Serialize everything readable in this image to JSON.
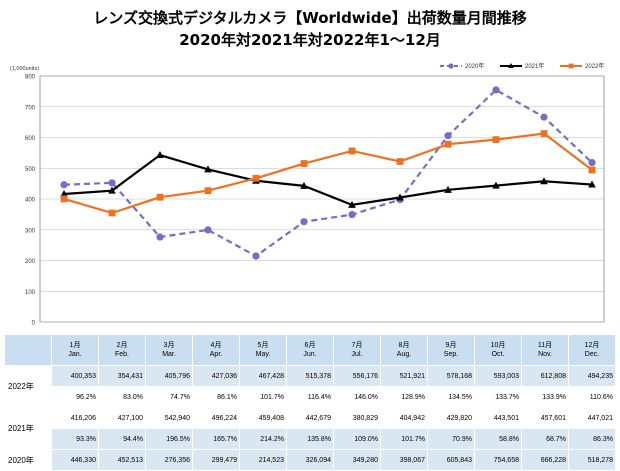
{
  "title_line1": "レンズ交換式デジタルカメラ【Worldwide】出荷数量月間推移",
  "title_line2": "2020年対2021年対2022年1〜12月",
  "chart_data": {
    "type": "line",
    "unit_label": "(1,000units)",
    "ylim": [
      0,
      800
    ],
    "yticks": [
      0,
      100,
      200,
      300,
      400,
      500,
      600,
      700,
      800
    ],
    "categories": [
      "1月",
      "2月",
      "3月",
      "4月",
      "5月",
      "6月",
      "7月",
      "8月",
      "9月",
      "10月",
      "11月",
      "12月"
    ],
    "legend_position": "top-right",
    "grid": "horizontal",
    "series": [
      {
        "name": "2020年",
        "color": "#7070cc",
        "style": "dashed",
        "marker": "circle",
        "values": [
          446.33,
          452.513,
          276.356,
          299.479,
          214.523,
          326.094,
          349.28,
          398.067,
          605.843,
          754.658,
          666.228,
          518.278
        ]
      },
      {
        "name": "2021年",
        "color": "#000000",
        "style": "solid",
        "marker": "triangle",
        "values": [
          416.206,
          427.1,
          542.94,
          496.224,
          459.408,
          442.679,
          380.829,
          404.942,
          429.82,
          443.501,
          457.601,
          447.021
        ]
      },
      {
        "name": "2022年",
        "color": "#f07020",
        "style": "solid",
        "marker": "square",
        "values": [
          400.353,
          354.431,
          405.796,
          427.036,
          467.428,
          515.378,
          556.176,
          521.921,
          578.168,
          593.003,
          612.808,
          494.235
        ]
      }
    ]
  },
  "table": {
    "months": [
      {
        "jp": "1月",
        "en": "Jan."
      },
      {
        "jp": "2月",
        "en": "Feb."
      },
      {
        "jp": "3月",
        "en": "Mar."
      },
      {
        "jp": "4月",
        "en": "Apr."
      },
      {
        "jp": "5月",
        "en": "May."
      },
      {
        "jp": "6月",
        "en": "Jun."
      },
      {
        "jp": "7月",
        "en": "Jul."
      },
      {
        "jp": "8月",
        "en": "Aug."
      },
      {
        "jp": "9月",
        "en": "Sep."
      },
      {
        "jp": "10月",
        "en": "Oct."
      },
      {
        "jp": "11月",
        "en": "Nov."
      },
      {
        "jp": "12月",
        "en": "Dec."
      }
    ],
    "rows": [
      {
        "label": "2022年",
        "values": [
          "400,353",
          "354,431",
          "405,796",
          "427,036",
          "467,428",
          "515,378",
          "556,176",
          "521,921",
          "578,168",
          "593,003",
          "612,808",
          "494,235"
        ],
        "ratios": [
          "96.2%",
          "83.0%",
          "74.7%",
          "86.1%",
          "101.7%",
          "116.4%",
          "146.0%",
          "128.9%",
          "134.5%",
          "133.7%",
          "133.9%",
          "110.6%"
        ]
      },
      {
        "label": "2021年",
        "values": [
          "416,206",
          "427,100",
          "542,940",
          "496,224",
          "459,408",
          "442,679",
          "380,829",
          "404,942",
          "429,820",
          "443,501",
          "457,601",
          "447,021"
        ],
        "ratios": [
          "93.3%",
          "94.4%",
          "196.5%",
          "165.7%",
          "214.2%",
          "135.8%",
          "109.0%",
          "101.7%",
          "70.9%",
          "58.8%",
          "68.7%",
          "86.3%"
        ]
      },
      {
        "label": "2020年",
        "values": [
          "446,330",
          "452,513",
          "276,356",
          "299,479",
          "214,523",
          "326,094",
          "349,280",
          "398,067",
          "605,843",
          "754,658",
          "666,228",
          "518,278"
        ]
      }
    ]
  }
}
